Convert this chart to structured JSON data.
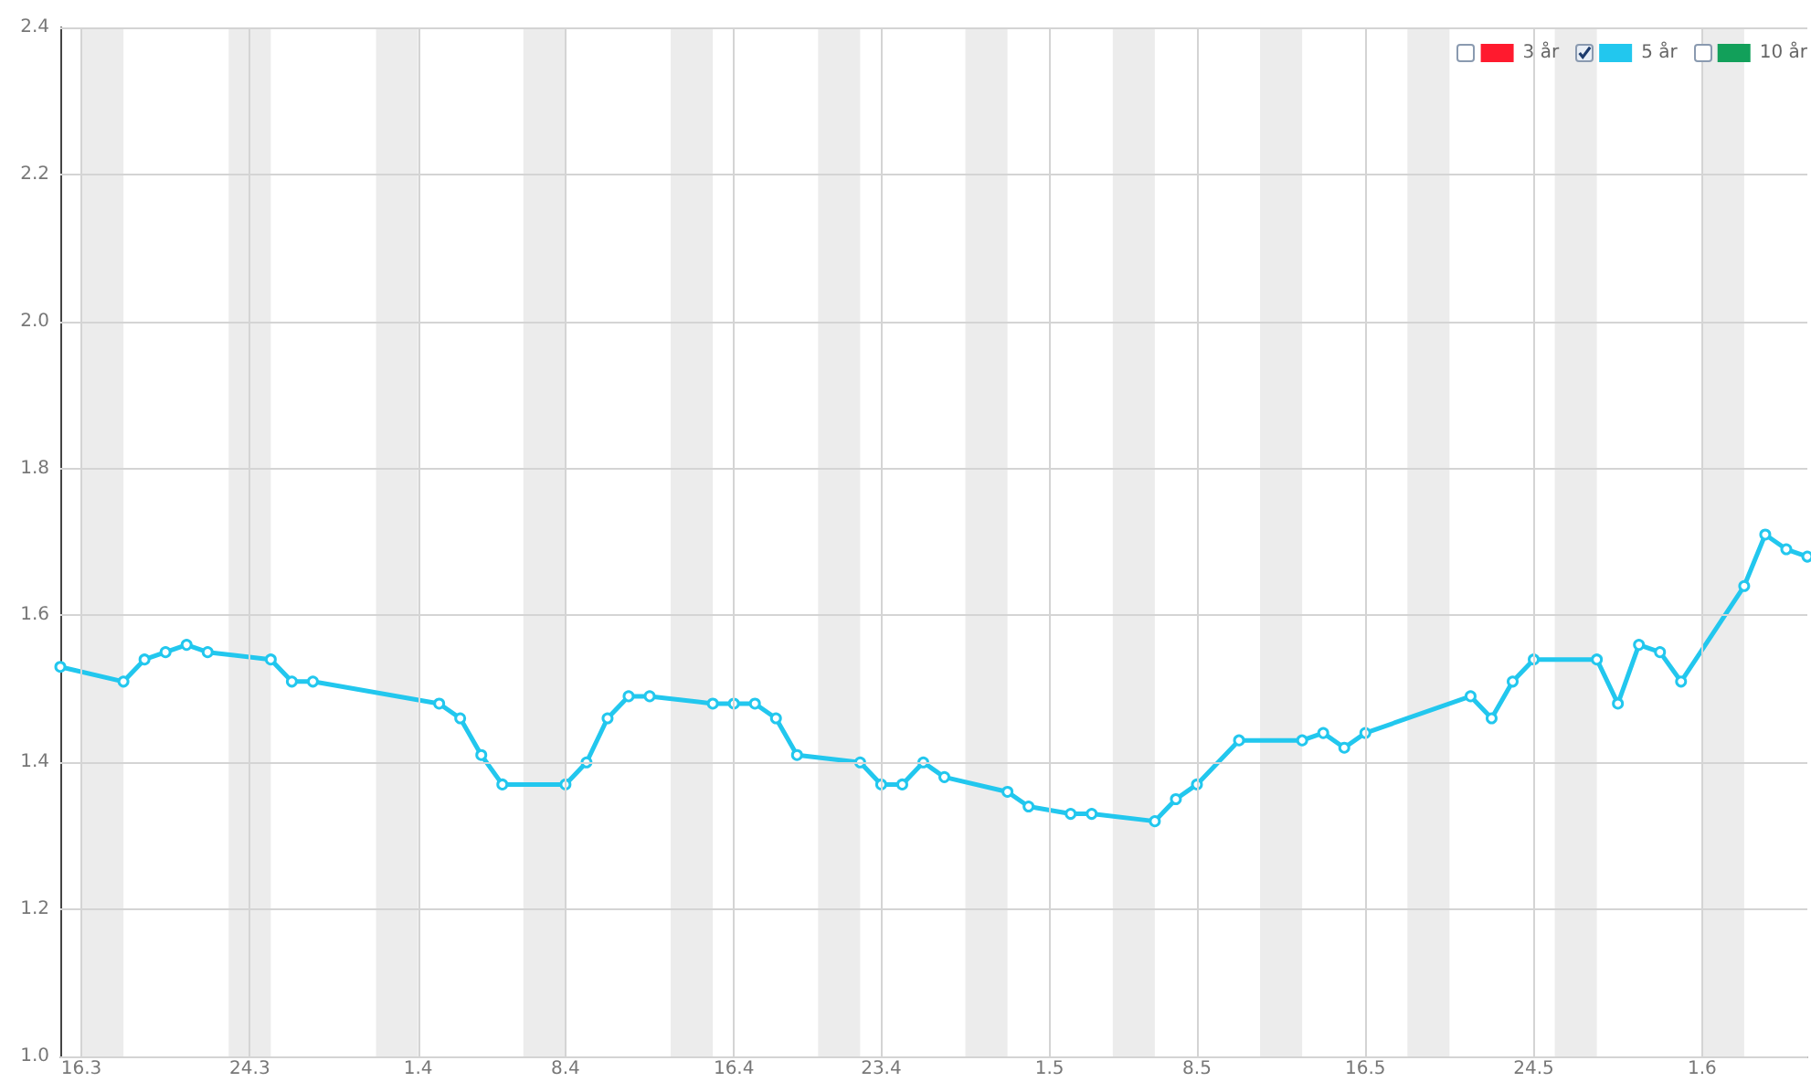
{
  "chart_data": {
    "type": "line",
    "x": [
      "--03-15",
      "--03-18",
      "--03-19",
      "--03-20",
      "--03-21",
      "--03-22",
      "--03-25",
      "--03-26",
      "--03-27",
      "--04-02",
      "--04-03",
      "--04-04",
      "--04-05",
      "--04-08",
      "--04-09",
      "--04-10",
      "--04-11",
      "--04-12",
      "--04-15",
      "--04-16",
      "--04-17",
      "--04-18",
      "--04-19",
      "--04-22",
      "--04-23",
      "--04-24",
      "--04-25",
      "--04-26",
      "--04-29",
      "--04-30",
      "--05-02",
      "--05-03",
      "--05-06",
      "--05-07",
      "--05-08",
      "--05-10",
      "--05-13",
      "--05-14",
      "--05-15",
      "--05-16",
      "--05-21",
      "--05-22",
      "--05-23",
      "--05-24",
      "--05-27",
      "--05-28",
      "--05-29",
      "--05-30",
      "--05-31",
      "--06-03",
      "--06-04",
      "--06-05",
      "--06-06"
    ],
    "series": [
      {
        "name": "3 år",
        "color": "#ff1a2e",
        "values": [
          null,
          null,
          null,
          null,
          null,
          null,
          null,
          null,
          null,
          null,
          null,
          null,
          null,
          null,
          null,
          null,
          null,
          null,
          null,
          null,
          null,
          null,
          null,
          null,
          null,
          null,
          null,
          null,
          null,
          null,
          null,
          null,
          null,
          null,
          null,
          null,
          null,
          null,
          null,
          null,
          null,
          null,
          null,
          null,
          null,
          null,
          null,
          null,
          null,
          null,
          null,
          null,
          null
        ]
      },
      {
        "name": "5 år",
        "color": "#22c7ee",
        "values": [
          1.53,
          1.51,
          1.54,
          1.55,
          1.56,
          1.55,
          1.54,
          1.51,
          1.51,
          1.48,
          1.46,
          1.41,
          1.37,
          1.37,
          1.4,
          1.46,
          1.49,
          1.49,
          1.48,
          1.48,
          1.48,
          1.46,
          1.41,
          1.4,
          1.37,
          1.37,
          1.4,
          1.38,
          1.36,
          1.34,
          1.33,
          1.33,
          1.32,
          1.35,
          1.37,
          1.43,
          1.43,
          1.44,
          1.42,
          1.44,
          1.49,
          1.46,
          1.51,
          1.54,
          1.54,
          1.48,
          1.56,
          1.55,
          1.51,
          1.64,
          1.71,
          1.69,
          1.68
        ]
      },
      {
        "name": "10 år",
        "color": "#12a05a",
        "values": [
          null,
          null,
          null,
          null,
          null,
          null,
          null,
          null,
          null,
          null,
          null,
          null,
          null,
          null,
          null,
          null,
          null,
          null,
          null,
          null,
          null,
          null,
          null,
          null,
          null,
          null,
          null,
          null,
          null,
          null,
          null,
          null,
          null,
          null,
          null,
          null,
          null,
          null,
          null,
          null,
          null,
          null,
          null,
          null,
          null,
          null,
          null,
          null,
          null,
          null,
          null,
          null,
          null
        ]
      }
    ],
    "xlim": [
      "--03-15",
      "--06-06"
    ],
    "xticks": [
      {
        "value": "--03-16",
        "label": "16.3"
      },
      {
        "value": "--03-24",
        "label": "24.3"
      },
      {
        "value": "--04-01",
        "label": "1.4"
      },
      {
        "value": "--04-08",
        "label": "8.4"
      },
      {
        "value": "--04-16",
        "label": "16.4"
      },
      {
        "value": "--04-23",
        "label": "23.4"
      },
      {
        "value": "--05-01",
        "label": "1.5"
      },
      {
        "value": "--05-08",
        "label": "8.5"
      },
      {
        "value": "--05-16",
        "label": "16.5"
      },
      {
        "value": "--05-24",
        "label": "24.5"
      },
      {
        "value": "--06-01",
        "label": "1.6"
      }
    ],
    "ylim": [
      1.0,
      2.4
    ],
    "yticks": [
      {
        "value": 1.0,
        "label": "1.0"
      },
      {
        "value": 1.2,
        "label": "1.2"
      },
      {
        "value": 1.4,
        "label": "1.4"
      },
      {
        "value": 1.6,
        "label": "1.6"
      },
      {
        "value": 1.8,
        "label": "1.8"
      },
      {
        "value": 2.0,
        "label": "2.0"
      },
      {
        "value": 2.2,
        "label": "2.2"
      },
      {
        "value": 2.4,
        "label": "2.4"
      }
    ],
    "bands": [
      {
        "axis": "x",
        "from": "--03-16",
        "to": "--03-18",
        "color": "#ececec"
      },
      {
        "axis": "x",
        "from": "--03-23",
        "to": "--03-25",
        "color": "#ececec"
      },
      {
        "axis": "x",
        "from": "--03-30",
        "to": "--04-01",
        "color": "#ececec"
      },
      {
        "axis": "x",
        "from": "--04-06",
        "to": "--04-08",
        "color": "#ececec"
      },
      {
        "axis": "x",
        "from": "--04-13",
        "to": "--04-15",
        "color": "#ececec"
      },
      {
        "axis": "x",
        "from": "--04-20",
        "to": "--04-22",
        "color": "#ececec"
      },
      {
        "axis": "x",
        "from": "--04-27",
        "to": "--04-29",
        "color": "#ececec"
      },
      {
        "axis": "x",
        "from": "--05-04",
        "to": "--05-06",
        "color": "#ececec"
      },
      {
        "axis": "x",
        "from": "--05-11",
        "to": "--05-13",
        "color": "#ececec"
      },
      {
        "axis": "x",
        "from": "--05-18",
        "to": "--05-20",
        "color": "#ececec"
      },
      {
        "axis": "x",
        "from": "--05-25",
        "to": "--05-27",
        "color": "#ececec"
      },
      {
        "axis": "x",
        "from": "--06-01",
        "to": "--06-03",
        "color": "#ececec"
      }
    ],
    "grid": true,
    "legend": "top right",
    "marker": "circle",
    "line_style": "solid"
  }
}
